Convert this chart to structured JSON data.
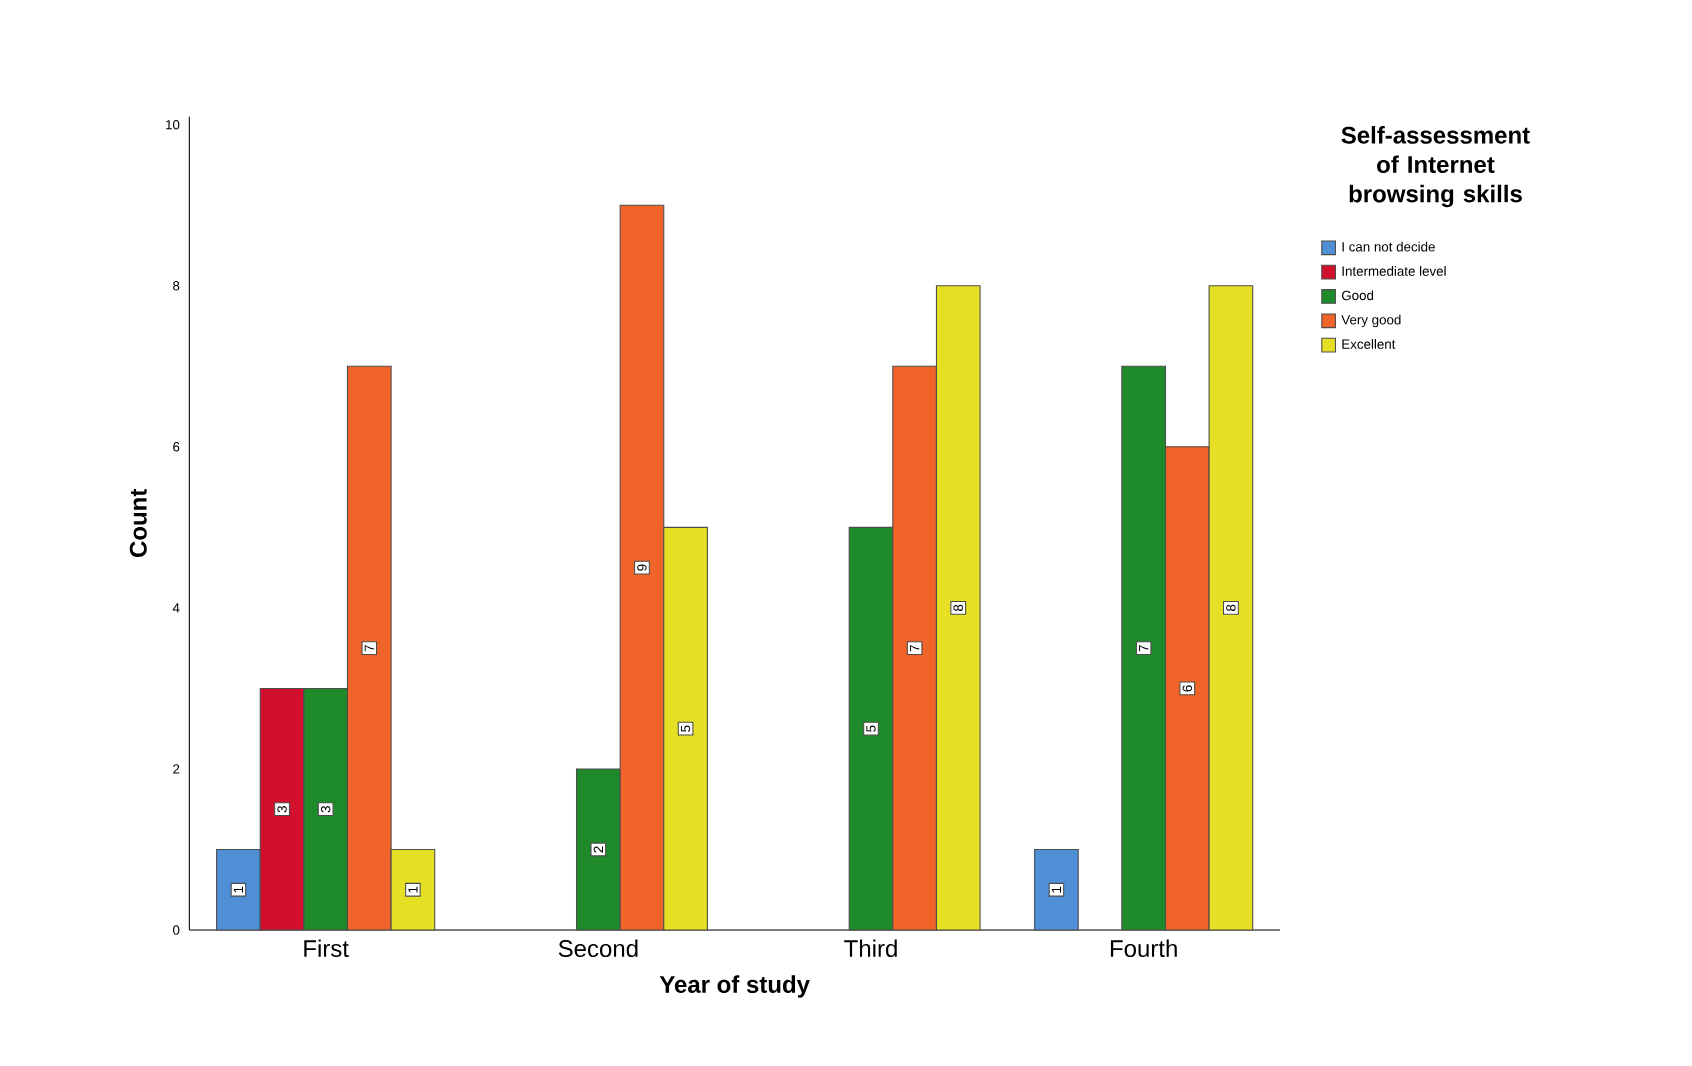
{
  "chart_data": {
    "type": "bar",
    "xlabel": "Year of study",
    "ylabel": "Count",
    "legend_title": "Self-assessment of Internet browsing skills",
    "categories": [
      "First",
      "Second",
      "Third",
      "Fourth"
    ],
    "series": [
      {
        "name": "I can not decide",
        "color": "#4f8fd6",
        "values": [
          1,
          null,
          null,
          1
        ]
      },
      {
        "name": "Intermediate level",
        "color": "#d0102c",
        "values": [
          3,
          null,
          null,
          null
        ]
      },
      {
        "name": "Good",
        "color": "#1f8a2a",
        "values": [
          3,
          2,
          5,
          7
        ]
      },
      {
        "name": "Very good",
        "color": "#f0642a",
        "values": [
          7,
          9,
          7,
          6
        ]
      },
      {
        "name": "Excellent",
        "color": "#e5e023",
        "values": [
          1,
          5,
          8,
          8
        ]
      }
    ],
    "ylim": [
      0,
      10.1
    ],
    "yticks": [
      0,
      2,
      4,
      6,
      8,
      10
    ],
    "data_labels": true,
    "legend": "top right",
    "grid": false
  }
}
